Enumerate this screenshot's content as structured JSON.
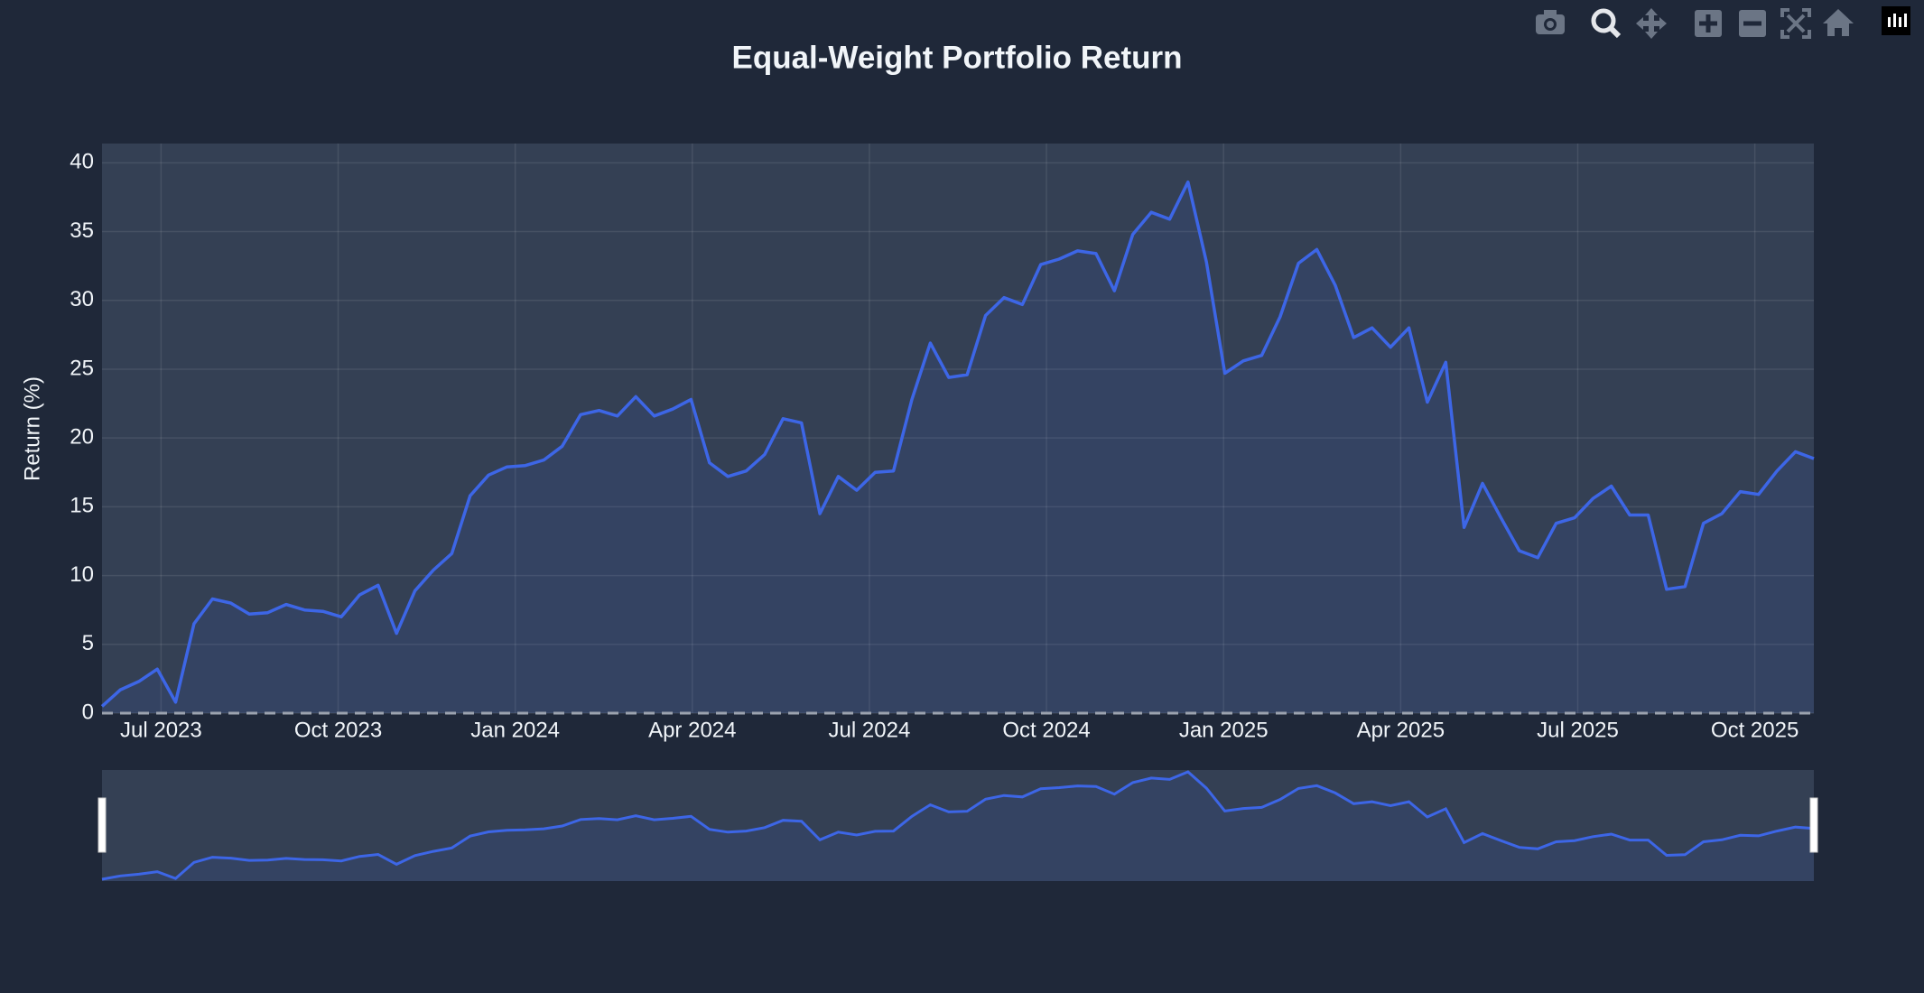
{
  "chart_data": {
    "type": "line",
    "title": "Equal-Weight Portfolio Return",
    "y_label": "Return (%)",
    "color": "#3d66e6",
    "grid": true,
    "range_slider": true,
    "xlim": [
      "2023-06",
      "2025-10"
    ],
    "xticks": [
      {
        "value": "2023-07",
        "label": "Jul 2023"
      },
      {
        "value": "2023-10",
        "label": "Oct 2023"
      },
      {
        "value": "2024-01",
        "label": "Jan 2024"
      },
      {
        "value": "2024-04",
        "label": "Apr 2024"
      },
      {
        "value": "2024-07",
        "label": "Jul 2024"
      },
      {
        "value": "2024-10",
        "label": "Oct 2024"
      },
      {
        "value": "2025-01",
        "label": "Jan 2025"
      },
      {
        "value": "2025-04",
        "label": "Apr 2025"
      },
      {
        "value": "2025-07",
        "label": "Jul 2025"
      },
      {
        "value": "2025-10",
        "label": "Oct 2025"
      }
    ],
    "ylim": [
      0,
      41.4
    ],
    "yticks": [
      0,
      5,
      10,
      15,
      20,
      25,
      30,
      35,
      40
    ],
    "values": [
      0.5,
      1.7,
      2.3,
      3.2,
      0.8,
      6.5,
      8.3,
      8,
      7.2,
      7.3,
      7.9,
      7.5,
      7.4,
      7,
      8.6,
      9.3,
      5.8,
      8.9,
      10.4,
      11.6,
      15.8,
      17.3,
      17.9,
      18,
      18.4,
      19.4,
      21.7,
      22,
      21.6,
      23,
      21.6,
      22.1,
      22.8,
      18.2,
      17.2,
      17.6,
      18.8,
      21.4,
      21.1,
      14.5,
      17.2,
      16.2,
      17.5,
      17.6,
      22.8,
      26.9,
      24.4,
      24.6,
      28.9,
      30.2,
      29.7,
      32.6,
      33,
      33.6,
      33.4,
      30.7,
      34.8,
      36.4,
      35.9,
      38.6,
      32.8,
      24.7,
      25.6,
      26,
      28.8,
      32.7,
      33.7,
      31.1,
      27.3,
      28,
      26.6,
      28,
      22.6,
      25.5,
      13.5,
      16.7,
      14.2,
      11.8,
      11.3,
      13.8,
      14.2,
      15.6,
      16.5,
      14.4,
      14.4,
      9,
      9.2,
      13.8,
      14.5,
      16.1,
      15.9,
      17.6,
      19,
      18.5
    ]
  }
}
